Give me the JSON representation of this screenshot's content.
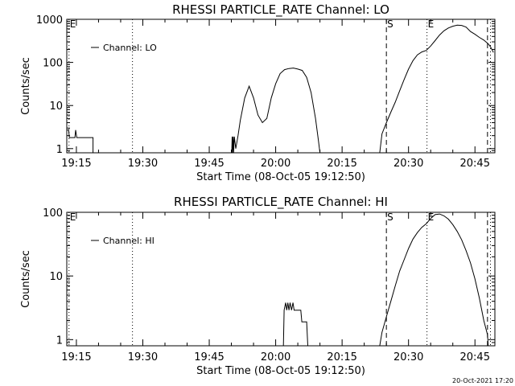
{
  "footer": {
    "timestamp": "20-Oct-2021 17:20"
  },
  "chart_data": [
    {
      "type": "line",
      "title": "RHESSI PARTICLE_RATE Channel: LO",
      "xlabel": "Start Time (08-Oct-05 19:12:50)",
      "ylabel": "Counts/sec",
      "yscale": "log",
      "xlim": [
        "19:12:50",
        "20:49:30"
      ],
      "ylim": [
        0.8,
        1000
      ],
      "xticks": [
        "19:15",
        "19:30",
        "19:45",
        "20:00",
        "20:15",
        "20:30",
        "20:45"
      ],
      "yticks": [
        "1",
        "10",
        "100",
        "1000"
      ],
      "legend": {
        "position": "top-left",
        "label": "Channel: LO"
      },
      "markers": [
        {
          "label": "E",
          "x": "19:13:20",
          "style": "dotted"
        },
        {
          "label": "",
          "x": "19:27:40",
          "style": "dotted"
        },
        {
          "label": "S",
          "x": "20:25:00",
          "style": "dashed"
        },
        {
          "label": "E",
          "x": "20:34:10",
          "style": "dotted"
        },
        {
          "label": "",
          "x": "20:47:50",
          "style": "dashed"
        },
        {
          "label": "",
          "x": "20:48:30",
          "style": "dotted"
        }
      ],
      "series": [
        {
          "name": "Channel: LO",
          "segments": [
            [
              [
                "19:12:50",
                2.7
              ],
              [
                "19:13:15",
                2.7
              ],
              [
                "19:13:25",
                1.8
              ],
              [
                "19:14:40",
                1.8
              ],
              [
                "19:14:50",
                2.7
              ],
              [
                "19:15:05",
                1.8
              ],
              [
                "19:18:45",
                1.8
              ],
              [
                "19:18:45",
                0.8
              ]
            ],
            [
              [
                "19:50:05",
                0.8
              ],
              [
                "19:50:10",
                1.9
              ],
              [
                "19:50:15",
                0.8
              ],
              [
                "19:50:25",
                1.9
              ],
              [
                "19:50:30",
                0.8
              ],
              [
                "19:50:40",
                1.9
              ],
              [
                "19:51:00",
                1.0
              ],
              [
                "19:51:30",
                2.0
              ],
              [
                "19:52:00",
                4.5
              ],
              [
                "19:53:00",
                15
              ],
              [
                "19:54:00",
                28
              ],
              [
                "19:55:00",
                15
              ],
              [
                "19:56:00",
                6
              ],
              [
                "19:57:00",
                4
              ],
              [
                "19:58:00",
                5
              ],
              [
                "19:59:00",
                15
              ],
              [
                "20:00:00",
                32
              ],
              [
                "20:01:00",
                55
              ],
              [
                "20:02:00",
                68
              ],
              [
                "20:03:00",
                72
              ],
              [
                "20:04:00",
                74
              ],
              [
                "20:05:00",
                70
              ],
              [
                "20:06:00",
                65
              ],
              [
                "20:07:00",
                45
              ],
              [
                "20:08:00",
                20
              ],
              [
                "20:09:00",
                5
              ],
              [
                "20:09:40",
                1.5
              ],
              [
                "20:10:00",
                0.8
              ]
            ],
            [
              [
                "20:23:30",
                0.8
              ],
              [
                "20:24:00",
                2.2
              ],
              [
                "20:25:00",
                4.0
              ],
              [
                "20:26:00",
                7
              ],
              [
                "20:27:00",
                12
              ],
              [
                "20:28:00",
                22
              ],
              [
                "20:29:00",
                40
              ],
              [
                "20:30:00",
                70
              ],
              [
                "20:31:00",
                110
              ],
              [
                "20:32:00",
                150
              ],
              [
                "20:33:00",
                175
              ],
              [
                "20:34:00",
                190
              ],
              [
                "20:35:00",
                240
              ],
              [
                "20:36:00",
                320
              ],
              [
                "20:37:00",
                430
              ],
              [
                "20:38:00",
                540
              ],
              [
                "20:39:00",
                630
              ],
              [
                "20:40:00",
                690
              ],
              [
                "20:41:00",
                730
              ],
              [
                "20:42:00",
                720
              ],
              [
                "20:43:00",
                660
              ],
              [
                "20:44:00",
                520
              ],
              [
                "20:45:00",
                450
              ],
              [
                "20:46:00",
                380
              ],
              [
                "20:47:00",
                330
              ],
              [
                "20:48:00",
                270
              ],
              [
                "20:48:30",
                230
              ],
              [
                "20:49:10",
                170
              ]
            ]
          ]
        }
      ]
    },
    {
      "type": "line",
      "title": "RHESSI PARTICLE_RATE Channel: HI",
      "xlabel": "Start Time (08-Oct-05 19:12:50)",
      "ylabel": "Counts/sec",
      "yscale": "log",
      "xlim": [
        "19:12:50",
        "20:49:30"
      ],
      "ylim": [
        0.8,
        100
      ],
      "xticks": [
        "19:15",
        "19:30",
        "19:45",
        "20:00",
        "20:15",
        "20:30",
        "20:45"
      ],
      "yticks": [
        "1",
        "10",
        "100"
      ],
      "legend": {
        "position": "top-left",
        "label": "Channel: HI"
      },
      "markers": [
        {
          "label": "E",
          "x": "19:13:20",
          "style": "dotted"
        },
        {
          "label": "",
          "x": "19:27:40",
          "style": "dotted"
        },
        {
          "label": "S",
          "x": "20:25:00",
          "style": "dashed"
        },
        {
          "label": "E",
          "x": "20:34:10",
          "style": "dotted"
        },
        {
          "label": "",
          "x": "20:47:50",
          "style": "dashed"
        },
        {
          "label": "",
          "x": "20:48:30",
          "style": "dotted"
        }
      ],
      "series": [
        {
          "name": "Channel: HI",
          "segments": [
            [
              [
                "20:01:45",
                0.8
              ],
              [
                "20:01:55",
                2.9
              ],
              [
                "20:02:15",
                3.8
              ],
              [
                "20:02:30",
                2.9
              ],
              [
                "20:02:45",
                3.8
              ],
              [
                "20:03:00",
                2.9
              ],
              [
                "20:03:15",
                3.8
              ],
              [
                "20:03:35",
                2.9
              ],
              [
                "20:03:55",
                3.8
              ],
              [
                "20:04:10",
                2.9
              ],
              [
                "20:05:40",
                2.9
              ],
              [
                "20:05:55",
                1.9
              ],
              [
                "20:07:00",
                1.9
              ],
              [
                "20:07:15",
                0.8
              ]
            ],
            [
              [
                "20:23:30",
                0.8
              ],
              [
                "20:24:00",
                1.3
              ],
              [
                "20:25:00",
                2.3
              ],
              [
                "20:26:00",
                4.0
              ],
              [
                "20:27:00",
                7
              ],
              [
                "20:28:00",
                12
              ],
              [
                "20:29:00",
                18
              ],
              [
                "20:30:00",
                27
              ],
              [
                "20:31:00",
                38
              ],
              [
                "20:32:00",
                48
              ],
              [
                "20:33:00",
                58
              ],
              [
                "20:34:00",
                66
              ],
              [
                "20:35:00",
                80
              ],
              [
                "20:36:00",
                92
              ],
              [
                "20:37:00",
                94
              ],
              [
                "20:38:00",
                88
              ],
              [
                "20:39:00",
                78
              ],
              [
                "20:40:00",
                64
              ],
              [
                "20:41:00",
                50
              ],
              [
                "20:42:00",
                37
              ],
              [
                "20:43:00",
                25
              ],
              [
                "20:44:00",
                16
              ],
              [
                "20:45:00",
                9
              ],
              [
                "20:46:00",
                4.5
              ],
              [
                "20:47:00",
                2.0
              ],
              [
                "20:47:50",
                1.2
              ],
              [
                "20:48:00",
                0.8
              ]
            ]
          ]
        }
      ]
    }
  ]
}
